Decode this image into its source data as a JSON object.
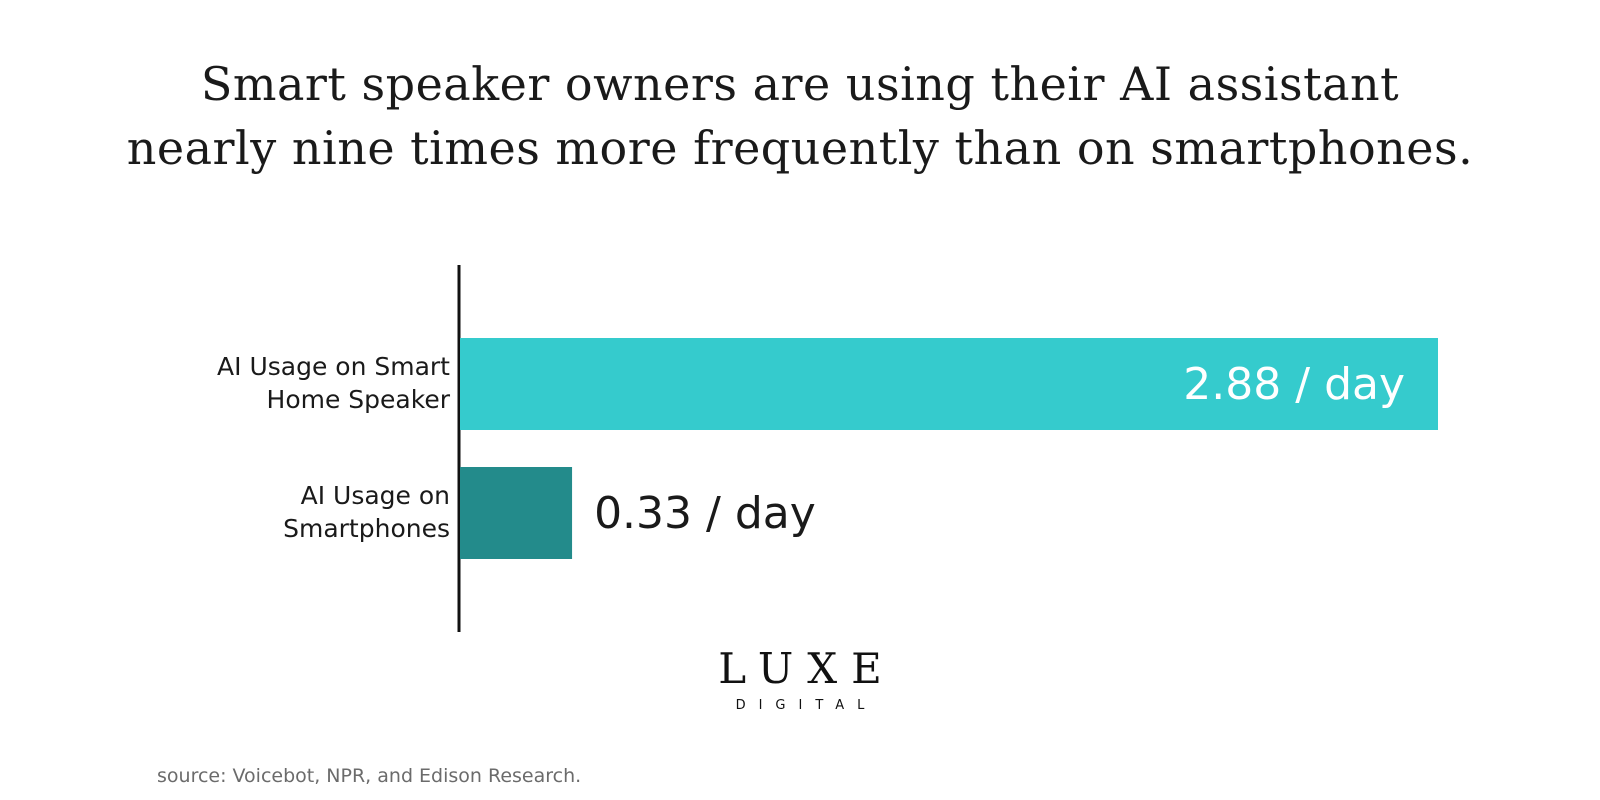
{
  "title_lines": [
    "Smart speaker owners are using their AI assistant",
    "nearly nine times more frequently than on smartphones."
  ],
  "chart_data": {
    "type": "bar",
    "orientation": "horizontal",
    "categories": [
      [
        "AI Usage on Smart",
        "Home Speaker"
      ],
      [
        "AI Usage on",
        "Smartphones"
      ]
    ],
    "values": [
      2.88,
      0.33
    ],
    "value_labels": [
      "2.88 / day",
      "0.33 / day"
    ],
    "xlim": [
      0,
      2.88
    ],
    "colors": [
      "#35cbcd",
      "#238b8b"
    ],
    "value_label_colors": [
      "#ffffff",
      "#1a1a1a"
    ],
    "grid": false,
    "legend": "none"
  },
  "logo": {
    "main": "LUXE",
    "sub": "DIGITAL"
  },
  "source": "source: Voicebot, NPR, and Edison Research."
}
